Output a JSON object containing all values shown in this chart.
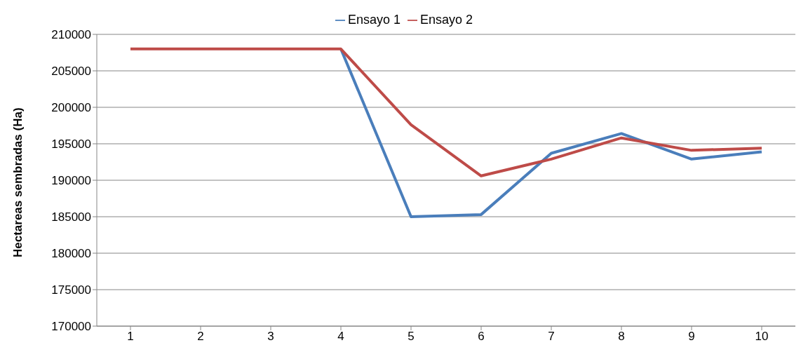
{
  "chart_data": {
    "type": "line",
    "ylabel": "Hectareas sembradas (Ha)",
    "categories": [
      "1",
      "2",
      "3",
      "4",
      "5",
      "6",
      "7",
      "8",
      "9",
      "10"
    ],
    "series": [
      {
        "name": "Ensayo 1",
        "color": "#4a7ebb",
        "values": [
          null,
          null,
          null,
          208000,
          185000,
          185300,
          193700,
          196400,
          192900,
          193900
        ]
      },
      {
        "name": "Ensayo 2",
        "color": "#be4b48",
        "values": [
          208000,
          208000,
          208000,
          208000,
          197600,
          190600,
          192900,
          195800,
          194100,
          194400
        ]
      }
    ],
    "ylim": [
      170000,
      210000
    ],
    "yticks": [
      170000,
      175000,
      180000,
      185000,
      190000,
      195000,
      200000,
      205000,
      210000
    ],
    "grid": "y",
    "legend": "top",
    "marker": "none",
    "line_style": "solid"
  }
}
